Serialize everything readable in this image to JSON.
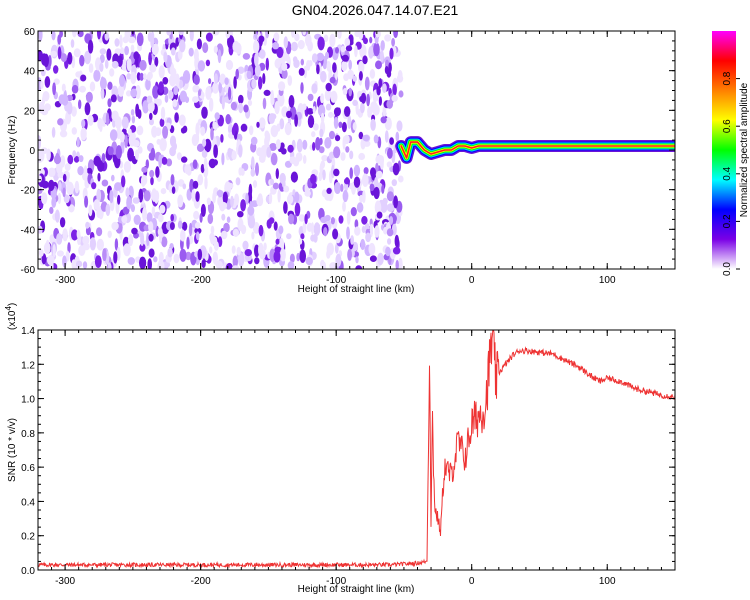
{
  "title": "GN04.2026.047.14.07.E21",
  "chart_data": [
    {
      "type": "heatmap",
      "title": "GN04.2026.047.14.07.E21",
      "xlabel": "Height of straight line (km)",
      "ylabel": "Frequency (Hz)",
      "xlim": [
        -320,
        150
      ],
      "ylim": [
        -60,
        60
      ],
      "x_ticks": [
        "-300",
        "-200",
        "-100",
        "0",
        "100"
      ],
      "y_ticks": [
        "-60",
        "-40",
        "-20",
        "0",
        "20",
        "40",
        "60"
      ],
      "noise_region_x": [
        -320,
        -52
      ],
      "ridge": [
        {
          "x": -52,
          "y": 2
        },
        {
          "x": -48,
          "y": -4
        },
        {
          "x": -45,
          "y": 4
        },
        {
          "x": -40,
          "y": 4
        },
        {
          "x": -35,
          "y": 0
        },
        {
          "x": -30,
          "y": -2
        },
        {
          "x": -25,
          "y": -1
        },
        {
          "x": -20,
          "y": 0
        },
        {
          "x": -15,
          "y": 0
        },
        {
          "x": -10,
          "y": 2
        },
        {
          "x": -5,
          "y": 2
        },
        {
          "x": 0,
          "y": 1
        },
        {
          "x": 5,
          "y": 2
        },
        {
          "x": 20,
          "y": 2
        },
        {
          "x": 50,
          "y": 2
        },
        {
          "x": 80,
          "y": 2
        },
        {
          "x": 100,
          "y": 2
        },
        {
          "x": 150,
          "y": 2
        }
      ],
      "colorbar": {
        "label": "Normalized spectral amplitude",
        "range": [
          0,
          1
        ],
        "ticks": [
          "0.0",
          "0.2",
          "0.4",
          "0.6",
          "0.8"
        ],
        "colors": [
          "#ffffff",
          "#7a00e6",
          "#0000ff",
          "#00ffff",
          "#00ff00",
          "#ffff00",
          "#ff8000",
          "#ff0000",
          "#ff00ff"
        ]
      },
      "grid": false
    },
    {
      "type": "line",
      "xlabel": "Height of straight line (km)",
      "ylabel": "SNR (10 * v/v)",
      "y_multiplier": "(x10",
      "y_multiplier_exp": "4",
      "y_multiplier_close": ")",
      "xlim": [
        -320,
        150
      ],
      "ylim": [
        0,
        1.4
      ],
      "x_ticks": [
        "-300",
        "-200",
        "-100",
        "0",
        "100"
      ],
      "y_ticks": [
        "0.0",
        "0.2",
        "0.4",
        "0.6",
        "0.8",
        "1.0",
        "1.2",
        "1.4"
      ],
      "series": [
        {
          "color": "#ee3333",
          "x": [
            -320,
            -300,
            -250,
            -200,
            -150,
            -100,
            -60,
            -40,
            -33,
            -31,
            -30,
            -29,
            -28,
            -27,
            -25,
            -23,
            -21,
            -20,
            -15,
            -10,
            -5,
            0,
            5,
            10,
            15,
            18,
            20,
            25,
            30,
            35,
            40,
            50,
            60,
            70,
            80,
            90,
            95,
            100,
            110,
            120,
            130,
            140,
            150
          ],
          "y": [
            0.03,
            0.03,
            0.03,
            0.03,
            0.03,
            0.03,
            0.03,
            0.04,
            0.05,
            1.3,
            0.25,
            0.9,
            0.55,
            0.35,
            0.3,
            0.22,
            0.5,
            0.6,
            0.55,
            0.75,
            0.65,
            0.85,
            0.9,
            0.95,
            1.35,
            1.1,
            1.15,
            1.2,
            1.25,
            1.28,
            1.28,
            1.27,
            1.26,
            1.22,
            1.18,
            1.12,
            1.1,
            1.12,
            1.1,
            1.06,
            1.04,
            1.02,
            1.01
          ]
        }
      ],
      "grid": false
    }
  ]
}
